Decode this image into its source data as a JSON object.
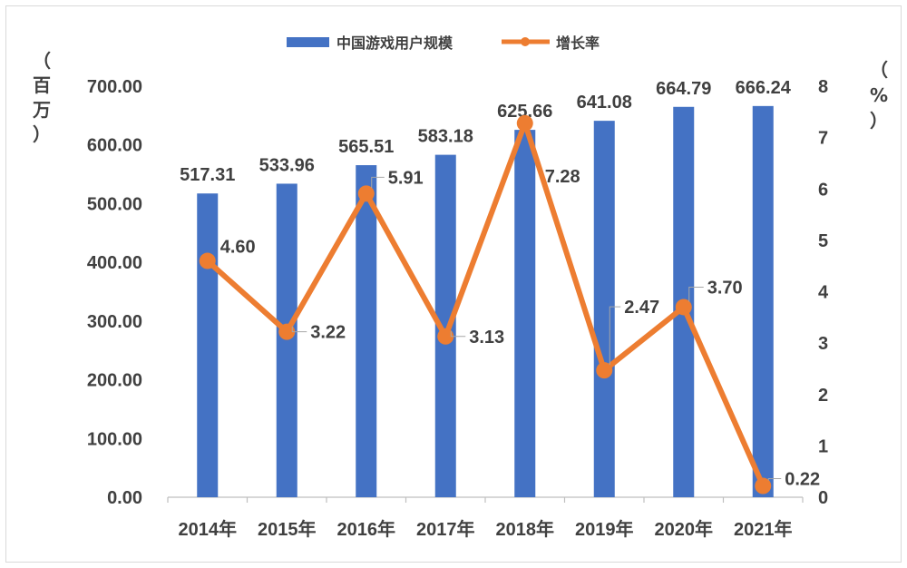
{
  "chart_data": {
    "type": "bar",
    "categories": [
      "2014年",
      "2015年",
      "2016年",
      "2017年",
      "2018年",
      "2019年",
      "2020年",
      "2021年"
    ],
    "series": [
      {
        "name": "中国游戏用户规模",
        "type": "bar",
        "axis": "left",
        "values": [
          517.31,
          533.96,
          565.51,
          583.18,
          625.66,
          641.08,
          664.79,
          666.24
        ]
      },
      {
        "name": "增长率",
        "type": "line",
        "axis": "right",
        "values": [
          4.6,
          3.22,
          5.91,
          3.13,
          7.28,
          2.47,
          3.7,
          0.22
        ]
      }
    ],
    "left_axis": {
      "unit_chars": [
        "（",
        "百",
        "万",
        "）"
      ],
      "ylim": [
        0,
        700
      ],
      "ticks": [
        "0.00",
        "100.00",
        "200.00",
        "300.00",
        "400.00",
        "500.00",
        "600.00",
        "700.00"
      ]
    },
    "right_axis": {
      "unit_chars": [
        "（",
        "%",
        "）"
      ],
      "ylim": [
        0,
        8
      ],
      "ticks": [
        "0",
        "1",
        "2",
        "3",
        "4",
        "5",
        "6",
        "7",
        "8"
      ]
    },
    "bar_labels": [
      "517.31",
      "533.96",
      "565.51",
      "583.18",
      "625.66",
      "641.08",
      "664.79",
      "666.24"
    ],
    "line_labels": [
      "4.60",
      "3.22",
      "5.91",
      "3.13",
      "7.28",
      "2.47",
      "3.70",
      "0.22"
    ],
    "legend_position": "top-center",
    "grid": false,
    "colors": {
      "bar": "#4472C4",
      "line": "#ED7D31",
      "text": "#404040",
      "axis": "#bfbfbf"
    }
  }
}
